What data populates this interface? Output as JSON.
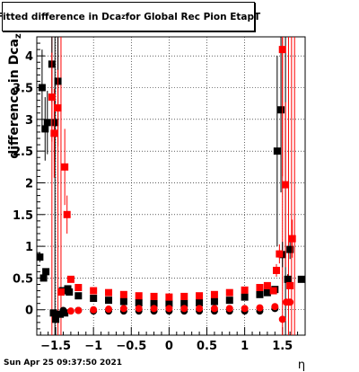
{
  "chart_data": {
    "type": "scatter",
    "title": {
      "prefix": "Fitted difference in Dca",
      "sub": "z",
      "suffix": " for Global Rec Pion EtapT"
    },
    "xlabel": "η",
    "ylabel": "difference in Dca",
    "ylabel_sub": "z",
    "xlim": [
      -1.75,
      1.8
    ],
    "ylim": [
      -0.4,
      4.3
    ],
    "xticks_major": [
      -1.5,
      -1,
      -0.5,
      0,
      0.5,
      1,
      1.5
    ],
    "xtick_labels": [
      "−1.5",
      "−1",
      "−0.5",
      "0",
      "0.5",
      "1",
      "1.5"
    ],
    "yticks_major": [
      0,
      0.5,
      1,
      1.5,
      2,
      2.5,
      3,
      3.5,
      4
    ],
    "ytick_labels": [
      "0",
      "0.5",
      "1",
      "1.5",
      "2",
      "2.5",
      "3",
      "3.5",
      "4"
    ],
    "grid": true,
    "series": [
      {
        "color": "#000000",
        "marker": "square",
        "points": [
          {
            "x": -1.71,
            "y": 0.83,
            "err": 0.08
          },
          {
            "x": -1.68,
            "y": 3.5,
            "err": 0.6
          },
          {
            "x": -1.66,
            "y": 0.5,
            "err": 0.05
          },
          {
            "x": -1.64,
            "y": 2.85,
            "err": 0.5
          },
          {
            "x": -1.63,
            "y": 0.6,
            "err": 0.05
          },
          {
            "x": -1.61,
            "y": 2.95,
            "err": 0.5
          },
          {
            "x": -1.55,
            "y": 3.87,
            "err": 0.6
          },
          {
            "x": -1.53,
            "y": -0.05,
            "err": 0.04
          },
          {
            "x": -1.51,
            "y": 2.95,
            "err": 0.6
          },
          {
            "x": -1.5,
            "y": -0.15,
            "err": 0.04
          },
          {
            "x": -1.47,
            "y": 3.6,
            "err": 0.7
          },
          {
            "x": -1.44,
            "y": -0.07,
            "err": 0.04
          },
          {
            "x": -1.41,
            "y": 0.3,
            "err": 0.04
          },
          {
            "x": -1.38,
            "y": -0.05,
            "err": 0.04
          },
          {
            "x": -1.34,
            "y": 0.33,
            "err": 0.04
          },
          {
            "x": -1.32,
            "y": 0.28,
            "err": 0.03
          },
          {
            "x": -1.2,
            "y": 0.22,
            "err": 0.03
          },
          {
            "x": -1.0,
            "y": 0.18,
            "err": 0.02
          },
          {
            "x": -0.8,
            "y": 0.15,
            "err": 0.02
          },
          {
            "x": -0.6,
            "y": 0.13,
            "err": 0.02
          },
          {
            "x": -0.4,
            "y": 0.11,
            "err": 0.02
          },
          {
            "x": -0.2,
            "y": 0.1,
            "err": 0.02
          },
          {
            "x": 0.0,
            "y": 0.1,
            "err": 0.02
          },
          {
            "x": 0.2,
            "y": 0.1,
            "err": 0.02
          },
          {
            "x": 0.4,
            "y": 0.11,
            "err": 0.02
          },
          {
            "x": 0.6,
            "y": 0.13,
            "err": 0.02
          },
          {
            "x": 0.8,
            "y": 0.15,
            "err": 0.02
          },
          {
            "x": 1.0,
            "y": 0.2,
            "err": 0.03
          },
          {
            "x": 1.2,
            "y": 0.24,
            "err": 0.03
          },
          {
            "x": 1.3,
            "y": 0.27,
            "err": 0.03
          },
          {
            "x": 1.4,
            "y": 0.32,
            "err": 0.04
          },
          {
            "x": 1.43,
            "y": 2.5,
            "err": 1.5
          },
          {
            "x": 1.48,
            "y": 3.15,
            "err": 1.3
          },
          {
            "x": 1.5,
            "y": 0.87,
            "err": 0.2
          },
          {
            "x": 1.57,
            "y": 0.48,
            "err": 0.08
          },
          {
            "x": 1.6,
            "y": 0.95,
            "err": 0.15
          },
          {
            "x": 1.75,
            "y": 0.48,
            "err": 0.05
          }
        ]
      },
      {
        "color": "#ff0000",
        "marker": "square",
        "points": [
          {
            "x": -1.55,
            "y": 3.35,
            "err": 0.7
          },
          {
            "x": -1.52,
            "y": 2.78,
            "err": 0.7
          },
          {
            "x": -1.47,
            "y": 3.18,
            "err": 0.6
          },
          {
            "x": -1.43,
            "y": 0.28,
            "err": 0.04
          },
          {
            "x": -1.38,
            "y": 2.25,
            "err": 0.6
          },
          {
            "x": -1.35,
            "y": 1.5,
            "err": 0.3
          },
          {
            "x": -1.3,
            "y": 0.48,
            "err": 0.05
          },
          {
            "x": -1.2,
            "y": 0.35,
            "err": 0.04
          },
          {
            "x": -1.0,
            "y": 0.3,
            "err": 0.03
          },
          {
            "x": -0.8,
            "y": 0.27,
            "err": 0.03
          },
          {
            "x": -0.6,
            "y": 0.24,
            "err": 0.02
          },
          {
            "x": -0.4,
            "y": 0.22,
            "err": 0.02
          },
          {
            "x": -0.2,
            "y": 0.21,
            "err": 0.02
          },
          {
            "x": 0.0,
            "y": 0.2,
            "err": 0.02
          },
          {
            "x": 0.2,
            "y": 0.21,
            "err": 0.02
          },
          {
            "x": 0.4,
            "y": 0.22,
            "err": 0.02
          },
          {
            "x": 0.6,
            "y": 0.24,
            "err": 0.02
          },
          {
            "x": 0.8,
            "y": 0.27,
            "err": 0.03
          },
          {
            "x": 1.0,
            "y": 0.31,
            "err": 0.03
          },
          {
            "x": 1.2,
            "y": 0.35,
            "err": 0.03
          },
          {
            "x": 1.3,
            "y": 0.38,
            "err": 0.04
          },
          {
            "x": 1.38,
            "y": 0.3,
            "err": 0.04
          },
          {
            "x": 1.42,
            "y": 0.62,
            "err": 0.1
          },
          {
            "x": 1.46,
            "y": 0.88,
            "err": 0.15
          },
          {
            "x": 1.5,
            "y": 4.1,
            "err": 2.0
          },
          {
            "x": 1.54,
            "y": 1.97,
            "err": 1.3
          },
          {
            "x": 1.6,
            "y": 0.38,
            "err": 0.05
          },
          {
            "x": 1.63,
            "y": 1.12,
            "err": 0.3
          }
        ]
      },
      {
        "color": "#000000",
        "marker": "circle",
        "points": [
          {
            "x": -1.4,
            "y": -0.01,
            "err": 0.02
          },
          {
            "x": -1.2,
            "y": -0.01,
            "err": 0.02
          },
          {
            "x": -1.0,
            "y": -0.02,
            "err": 0.02
          },
          {
            "x": -0.8,
            "y": -0.02,
            "err": 0.02
          },
          {
            "x": -0.6,
            "y": -0.02,
            "err": 0.02
          },
          {
            "x": -0.4,
            "y": -0.02,
            "err": 0.02
          },
          {
            "x": -0.2,
            "y": -0.02,
            "err": 0.02
          },
          {
            "x": 0.0,
            "y": -0.02,
            "err": 0.02
          },
          {
            "x": 0.2,
            "y": -0.02,
            "err": 0.02
          },
          {
            "x": 0.4,
            "y": -0.02,
            "err": 0.02
          },
          {
            "x": 0.6,
            "y": -0.02,
            "err": 0.02
          },
          {
            "x": 0.8,
            "y": -0.02,
            "err": 0.02
          },
          {
            "x": 1.0,
            "y": -0.02,
            "err": 0.02
          },
          {
            "x": 1.2,
            "y": -0.02,
            "err": 0.02
          },
          {
            "x": 1.4,
            "y": 0.02,
            "err": 0.02
          }
        ]
      },
      {
        "color": "#ff0000",
        "marker": "circle",
        "points": [
          {
            "x": -1.3,
            "y": -0.02,
            "err": 0.03
          },
          {
            "x": -1.2,
            "y": -0.01,
            "err": 0.03
          },
          {
            "x": -1.0,
            "y": 0.0,
            "err": 0.02
          },
          {
            "x": -0.8,
            "y": 0.01,
            "err": 0.02
          },
          {
            "x": -0.6,
            "y": 0.02,
            "err": 0.02
          },
          {
            "x": -0.4,
            "y": 0.02,
            "err": 0.02
          },
          {
            "x": -0.2,
            "y": 0.02,
            "err": 0.02
          },
          {
            "x": 0.0,
            "y": 0.02,
            "err": 0.02
          },
          {
            "x": 0.2,
            "y": 0.02,
            "err": 0.02
          },
          {
            "x": 0.4,
            "y": 0.02,
            "err": 0.02
          },
          {
            "x": 0.6,
            "y": 0.02,
            "err": 0.02
          },
          {
            "x": 0.8,
            "y": 0.02,
            "err": 0.02
          },
          {
            "x": 1.0,
            "y": 0.02,
            "err": 0.02
          },
          {
            "x": 1.2,
            "y": 0.03,
            "err": 0.03
          },
          {
            "x": 1.4,
            "y": 0.05,
            "err": 0.03
          },
          {
            "x": 1.5,
            "y": -0.15,
            "err": 0.04
          },
          {
            "x": 1.55,
            "y": 0.12,
            "err": 0.05
          },
          {
            "x": 1.6,
            "y": 0.12,
            "err": 0.05
          }
        ]
      }
    ],
    "error_lines": [
      {
        "x": -1.55,
        "color": "#ff0000"
      },
      {
        "x": -1.51,
        "color": "#000000"
      },
      {
        "x": -1.47,
        "color": "#ff0000"
      },
      {
        "x": -1.43,
        "color": "#ff0000"
      },
      {
        "x": 1.5,
        "color": "#ff0000"
      },
      {
        "x": 1.54,
        "color": "#000000"
      },
      {
        "x": 1.58,
        "color": "#ff0000"
      },
      {
        "x": 1.62,
        "color": "#ff0000"
      },
      {
        "x": 1.66,
        "color": "#ff0000"
      }
    ]
  },
  "footer": {
    "timestamp": "Sun Apr 25 09:37:50 2021"
  }
}
